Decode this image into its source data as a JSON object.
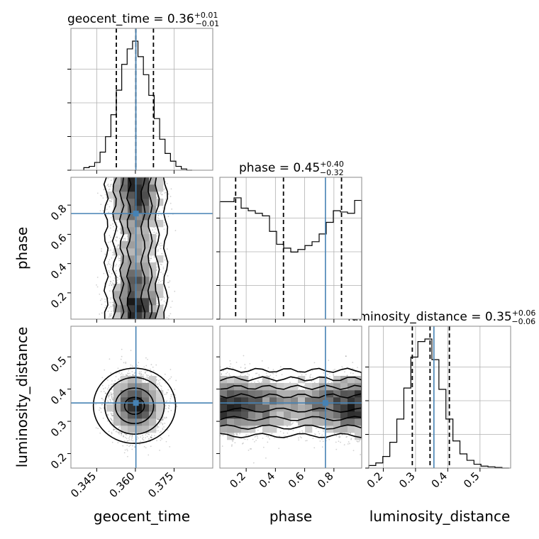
{
  "chart_data": {
    "type": "corner",
    "parameters": [
      "geocent_time",
      "phase",
      "luminosity_distance"
    ],
    "axis_labels": [
      "geocent_time",
      "phase",
      "luminosity_distance"
    ],
    "ranges": [
      [
        0.335,
        0.39
      ],
      [
        0.02,
        0.99
      ],
      [
        0.155,
        0.595
      ]
    ],
    "ticks": [
      {
        "values": [
          0.345,
          0.36,
          0.375
        ],
        "labels": [
          "0.345",
          "0.360",
          "0.375"
        ]
      },
      {
        "values": [
          0.2,
          0.4,
          0.6,
          0.8
        ],
        "labels": [
          "0.2",
          "0.4",
          "0.6",
          "0.8"
        ]
      },
      {
        "values": [
          0.2,
          0.3,
          0.4,
          0.5
        ],
        "labels": [
          "0.2",
          "0.3",
          "0.4",
          "0.5"
        ]
      }
    ],
    "truths": [
      0.3602,
      0.742,
      0.357
    ],
    "truth_color": "#4682b4",
    "grid": true,
    "titles": [
      {
        "text": "geocent_time = 0.36",
        "sup": "+0.01",
        "sub": "−0.01"
      },
      {
        "text": "phase = 0.45",
        "sup": "+0.40",
        "sub": "−0.32"
      },
      {
        "text": "luminosity_distance = 0.35",
        "sup": "+0.06",
        "sub": "−0.06"
      }
    ],
    "quantiles": [
      [
        0.3526,
        0.3602,
        0.367
      ],
      [
        0.128,
        0.455,
        0.852
      ],
      [
        0.29,
        0.345,
        0.405
      ]
    ],
    "histograms": [
      {
        "x_min": 0.34,
        "x_max": 0.382,
        "counts": [
          0.02,
          0.03,
          0.06,
          0.14,
          0.26,
          0.43,
          0.62,
          0.82,
          0.94,
          1.0,
          0.88,
          0.74,
          0.58,
          0.4,
          0.24,
          0.13,
          0.07,
          0.03,
          0.01,
          0.0
        ]
      },
      {
        "x_min": 0.02,
        "x_max": 0.99,
        "counts": [
          0.91,
          0.91,
          0.94,
          0.86,
          0.84,
          0.82,
          0.8,
          0.68,
          0.58,
          0.55,
          0.52,
          0.54,
          0.57,
          0.6,
          0.66,
          0.75,
          0.84,
          0.83,
          0.82,
          0.92
        ]
      },
      {
        "x_min": 0.155,
        "x_max": 0.59,
        "counts": [
          0.02,
          0.04,
          0.09,
          0.2,
          0.38,
          0.62,
          0.86,
          0.98,
          1.0,
          0.84,
          0.61,
          0.38,
          0.21,
          0.11,
          0.06,
          0.03,
          0.015,
          0.01,
          0.005,
          0.0
        ]
      }
    ],
    "posterior_shape": {
      "geocent_time": {
        "mean": 0.3603,
        "sd": 0.0048
      },
      "phase": {
        "mode_a": 0.16,
        "mode_b": 0.88,
        "sd": 0.22
      },
      "luminosity_distance": {
        "mean": 0.35,
        "sd": 0.045
      }
    }
  }
}
